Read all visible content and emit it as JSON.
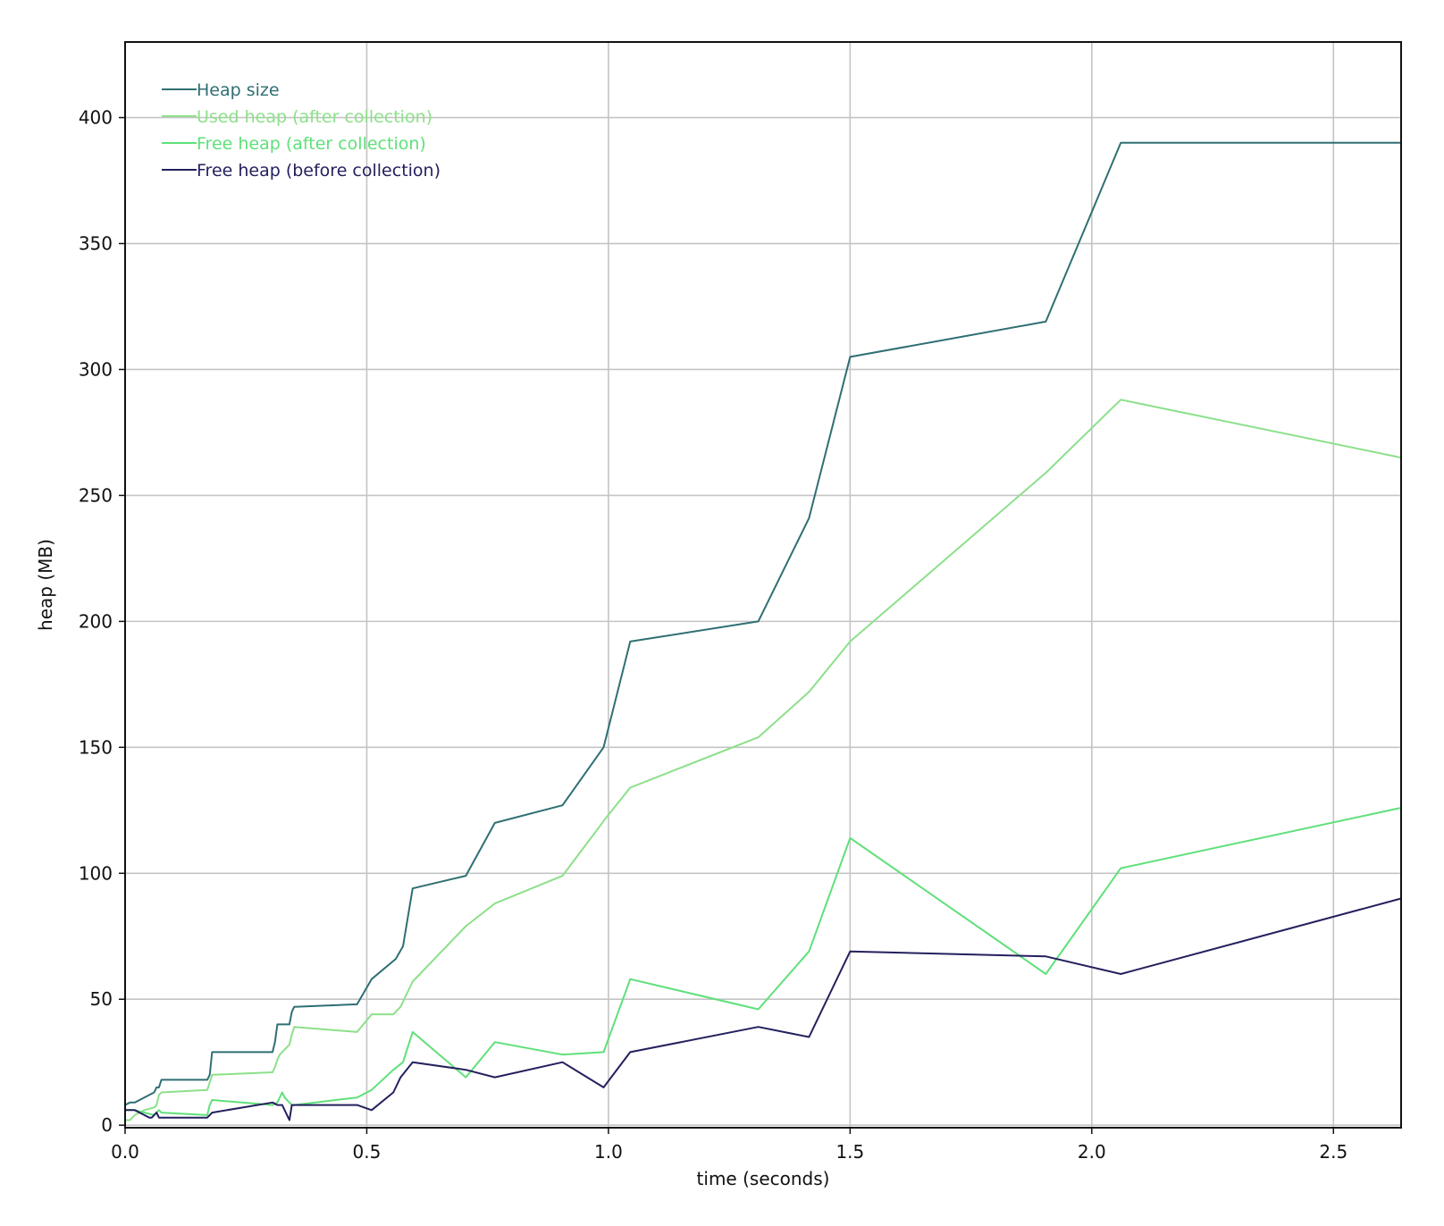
{
  "chart_data": {
    "type": "line",
    "xlabel": "time (seconds)",
    "ylabel": "heap (MB)",
    "xlim": [
      0,
      2.64
    ],
    "ylim": [
      -1,
      430
    ],
    "xticks": [
      0.0,
      0.5,
      1.0,
      1.5,
      2.0,
      2.5
    ],
    "xtick_labels": [
      "0.0",
      "0.5",
      "1.0",
      "1.5",
      "2.0",
      "2.5"
    ],
    "yticks": [
      0,
      50,
      100,
      150,
      200,
      250,
      300,
      350,
      400
    ],
    "ytick_labels": [
      "0",
      "50",
      "100",
      "150",
      "200",
      "250",
      "300",
      "350",
      "400"
    ],
    "grid": true,
    "legend_position": "top-left",
    "series": [
      {
        "name": "Heap size",
        "color": "#2f6f73",
        "x": [
          0.0,
          0.01,
          0.02,
          0.03,
          0.05,
          0.06,
          0.065,
          0.07,
          0.075,
          0.17,
          0.175,
          0.18,
          0.305,
          0.31,
          0.315,
          0.32,
          0.34,
          0.345,
          0.35,
          0.48,
          0.51,
          0.56,
          0.575,
          0.595,
          0.705,
          0.765,
          0.905,
          0.99,
          1.045,
          1.31,
          1.415,
          1.5,
          1.905,
          2.06,
          2.64
        ],
        "y": [
          8,
          9,
          9,
          10,
          12,
          13,
          15,
          15,
          18,
          18,
          20,
          29,
          29,
          33,
          40,
          40,
          40,
          45,
          47,
          48,
          58,
          66,
          71,
          94,
          99,
          120,
          127,
          150,
          192,
          200,
          241,
          305,
          319,
          390,
          390
        ]
      },
      {
        "name": "Used heap (after collection)",
        "color": "#8ce08a",
        "x": [
          0.0,
          0.01,
          0.02,
          0.04,
          0.06,
          0.065,
          0.07,
          0.075,
          0.17,
          0.175,
          0.18,
          0.305,
          0.31,
          0.315,
          0.32,
          0.34,
          0.345,
          0.35,
          0.48,
          0.51,
          0.555,
          0.57,
          0.595,
          0.705,
          0.765,
          0.905,
          0.995,
          1.045,
          1.31,
          1.415,
          1.5,
          1.905,
          2.06,
          2.64
        ],
        "y": [
          2,
          2,
          4,
          6,
          7,
          8,
          12,
          13,
          14,
          17,
          20,
          21,
          23,
          26,
          28,
          32,
          36,
          39,
          37,
          44,
          44,
          47,
          57,
          79,
          88,
          99,
          122,
          134,
          154,
          172,
          192,
          259,
          288,
          265
        ]
      },
      {
        "name": "Free heap (after collection)",
        "color": "#5fe07a",
        "x": [
          0.0,
          0.02,
          0.04,
          0.06,
          0.065,
          0.07,
          0.075,
          0.17,
          0.175,
          0.18,
          0.305,
          0.315,
          0.325,
          0.33,
          0.345,
          0.35,
          0.48,
          0.51,
          0.555,
          0.575,
          0.595,
          0.705,
          0.765,
          0.905,
          0.99,
          1.045,
          1.31,
          1.415,
          1.5,
          1.905,
          2.06,
          2.64
        ],
        "y": [
          6,
          6,
          5,
          4,
          5,
          6,
          5,
          4,
          8,
          10,
          8,
          9,
          13,
          11,
          8,
          8,
          11,
          14,
          22,
          25,
          37,
          19,
          33,
          28,
          29,
          58,
          46,
          69,
          114,
          60,
          102,
          126
        ]
      },
      {
        "name": "Free heap (before collection)",
        "color": "#24205e",
        "x": [
          0.0,
          0.02,
          0.03,
          0.04,
          0.05,
          0.055,
          0.06,
          0.065,
          0.07,
          0.075,
          0.17,
          0.175,
          0.18,
          0.305,
          0.315,
          0.325,
          0.34,
          0.345,
          0.35,
          0.48,
          0.51,
          0.555,
          0.57,
          0.595,
          0.705,
          0.765,
          0.905,
          0.99,
          1.045,
          1.31,
          1.415,
          1.5,
          1.905,
          2.06,
          2.64
        ],
        "y": [
          6,
          6,
          5,
          4,
          3,
          3,
          4,
          5,
          3,
          3,
          3,
          4,
          5,
          9,
          8,
          8,
          2,
          8,
          8,
          8,
          6,
          13,
          19,
          25,
          22,
          19,
          25,
          15,
          29,
          39,
          35,
          69,
          67,
          60,
          90
        ]
      }
    ]
  }
}
